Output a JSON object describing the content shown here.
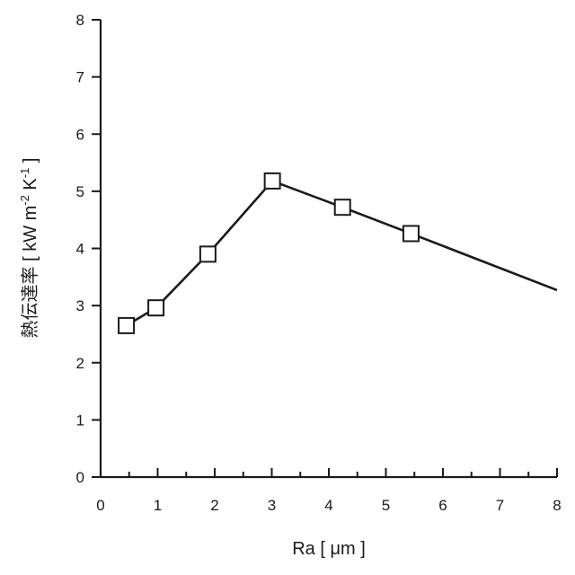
{
  "chart_data": {
    "type": "line",
    "xlabel": "Ra [ μm ]",
    "ylabel_main": "熱伝達率 [ kW m",
    "ylabel_exp1": "-2",
    "ylabel_mid": " K",
    "ylabel_exp2": "-1",
    "ylabel_end": " ]",
    "xlim": [
      0,
      8
    ],
    "ylim": [
      0,
      8
    ],
    "x_major_ticks": [
      0,
      1,
      2,
      3,
      4,
      5,
      6,
      7,
      8
    ],
    "y_major_ticks": [
      0,
      1,
      2,
      3,
      4,
      5,
      6,
      7,
      8
    ],
    "x_minor_step": 0.5,
    "grid": false,
    "series": [
      {
        "points": [
          {
            "x": 0.45,
            "y": 2.65
          },
          {
            "x": 0.97,
            "y": 2.96
          },
          {
            "x": 1.88,
            "y": 3.9
          },
          {
            "x": 3.01,
            "y": 5.18
          },
          {
            "x": 4.24,
            "y": 4.72
          },
          {
            "x": 5.44,
            "y": 4.26
          },
          {
            "x": 8.0,
            "y": 3.27
          }
        ],
        "marker_count": 6,
        "marker": "open-square",
        "color": "#1a1a1a"
      }
    ]
  }
}
